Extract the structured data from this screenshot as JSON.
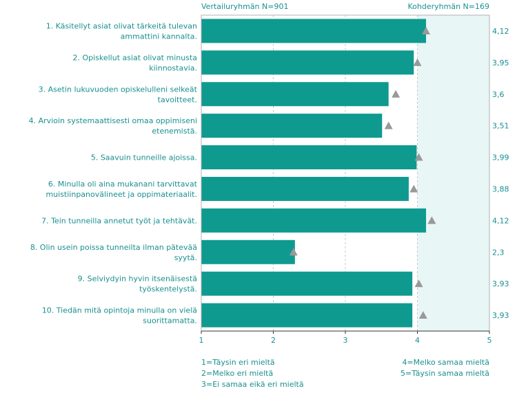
{
  "header": {
    "left": "Vertailuryhmän  N=901",
    "right": "Kohderyhmän N=169"
  },
  "chart_data": {
    "type": "bar",
    "orientation": "horizontal",
    "xlim": [
      1,
      5
    ],
    "xticks": [
      "1",
      "2",
      "3",
      "4",
      "5"
    ],
    "grid": true,
    "colors": {
      "bar": "#0f9a90",
      "marker": "#999999",
      "shade": "#e8f6f6",
      "text": "#1a8f8f",
      "axis": "#333333"
    },
    "categories": [
      [
        "1. Käsitellyt asiat olivat tärkeitä tulevan",
        "ammattini kannalta."
      ],
      [
        "2. Opiskellut asiat olivat minusta",
        "kiinnostavia."
      ],
      [
        "3. Asetin lukuvuoden opiskelulleni selkeät",
        "tavoitteet."
      ],
      [
        "4. Arvioin systemaattisesti omaa oppimiseni",
        "etenemistä."
      ],
      [
        "5. Saavuin tunneille ajoissa."
      ],
      [
        "6. Minulla oli aina mukanani tarvittavat",
        "muistiinpanovälineet ja oppimateriaalit."
      ],
      [
        "7. Tein tunneilla annetut työt ja tehtävät."
      ],
      [
        "8. Olin usein poissa tunneilta ilman pätevää",
        "syytä."
      ],
      [
        "9. Selviydyin hyvin itsenäisestä",
        "työskentelystä."
      ],
      [
        "10. Tiedän mitä opintoja minulla on vielä",
        "suorittamatta."
      ]
    ],
    "series": [
      {
        "name": "Kohderyhmän N=169",
        "values": [
          4.12,
          3.95,
          3.6,
          3.51,
          3.99,
          3.88,
          4.12,
          2.3,
          3.93,
          3.93
        ]
      },
      {
        "name": "Vertailuryhmän  N=901",
        "values": [
          4.12,
          4.0,
          3.7,
          3.6,
          4.02,
          3.95,
          4.2,
          2.28,
          4.02,
          4.08
        ]
      }
    ],
    "value_labels": [
      "4,12",
      "3,95",
      "3,6",
      "3,51",
      "3,99",
      "3,88",
      "4,12",
      "2,3",
      "3,93",
      "3,93"
    ]
  },
  "legend": {
    "left": [
      "1=Täysin eri mieltä",
      "2=Melko eri mieltä",
      "3=Ei samaa eikä eri mieltä"
    ],
    "right": [
      "4=Melko samaa mieltä",
      "5=Täysin samaa mieltä"
    ]
  }
}
